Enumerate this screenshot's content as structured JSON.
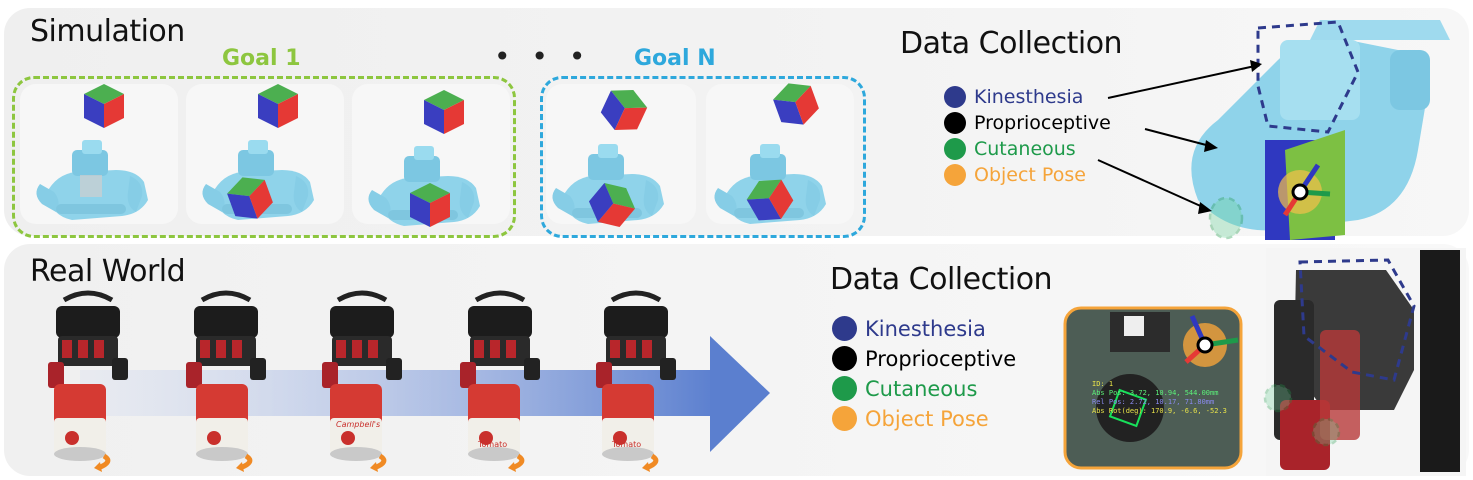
{
  "simulation": {
    "title": "Simulation",
    "goal_first": "Goal 1",
    "goal_last": "Goal N",
    "ellipsis": "• • •",
    "data_collection_title": "Data Collection",
    "legend": [
      {
        "label": "Kinesthesia",
        "color": "#2e3a8c"
      },
      {
        "label": "Proprioceptive",
        "color": "#000000"
      },
      {
        "label": "Cutaneous",
        "color": "#1e9a4a"
      },
      {
        "label": "Object Pose",
        "color": "#f5a43a"
      }
    ]
  },
  "real_world": {
    "title": "Real World",
    "data_collection_title": "Data Collection",
    "legend": [
      {
        "label": "Kinesthesia",
        "color": "#2e3a8c"
      },
      {
        "label": "Proprioceptive",
        "color": "#000000"
      },
      {
        "label": "Cutaneous",
        "color": "#1e9a4a"
      },
      {
        "label": "Object Pose",
        "color": "#f5a43a"
      }
    ],
    "can_labels": [
      "Campbell's",
      "Tomato",
      "Tomato"
    ],
    "camera_readout": {
      "id": "ID: 1",
      "pos": "Abs Pos: 3.72, 10.94, 544.00mm",
      "rel": "Rel Pos: 2.72, 10.17, 71.80mm",
      "rot": "Abs Rot(deg): 170.9, -6.6, -52.3"
    }
  },
  "colors": {
    "goal1": "#8dc63f",
    "goalN": "#2ea8dc",
    "hand": "#8fd3ea",
    "arrow": "#5b7fcf"
  }
}
